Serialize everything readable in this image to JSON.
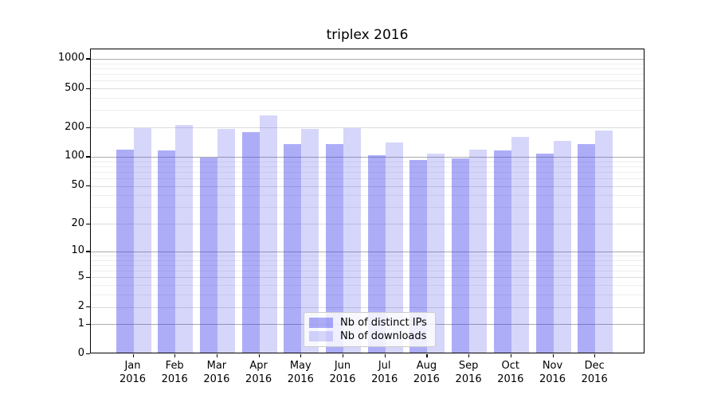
{
  "chart_data": {
    "type": "bar",
    "title": "triplex 2016",
    "categories": [
      "Jan",
      "Feb",
      "Mar",
      "Apr",
      "May",
      "Jun",
      "Jul",
      "Aug",
      "Sep",
      "Oct",
      "Nov",
      "Dec"
    ],
    "year": "2016",
    "series": [
      {
        "name": "Nb of distinct IPs",
        "color": "rgba(60,60,235,0.42)",
        "values": [
          114,
          112,
          96,
          175,
          131,
          131,
          101,
          90,
          93,
          113,
          104,
          132
        ]
      },
      {
        "name": "Nb of downloads",
        "color": "rgba(60,60,235,0.21)",
        "values": [
          190,
          207,
          186,
          260,
          187,
          192,
          137,
          104,
          115,
          155,
          141,
          182
        ]
      }
    ],
    "yscale": "log1p",
    "ylim": [
      0,
      1260
    ],
    "yticks": [
      0,
      1,
      2,
      5,
      10,
      20,
      50,
      100,
      200,
      500,
      1000
    ],
    "major_gridlines": [
      1,
      10,
      100,
      1000
    ],
    "minor_gridlines": [
      3,
      4,
      6,
      7,
      8,
      9,
      30,
      40,
      60,
      70,
      80,
      90,
      300,
      400,
      600,
      700,
      800,
      900
    ],
    "grid": true,
    "legend_position": "lower center"
  },
  "colors": {
    "background": "#ffffff",
    "axis_frame": "#000000",
    "major_grid": "#ababab",
    "tick_grid": "#dcdcdc",
    "minor_grid": "#ededed",
    "text": "#000000",
    "legend_border": "#cccccc",
    "legend_bg": "rgba(255,255,255,0.8)"
  }
}
